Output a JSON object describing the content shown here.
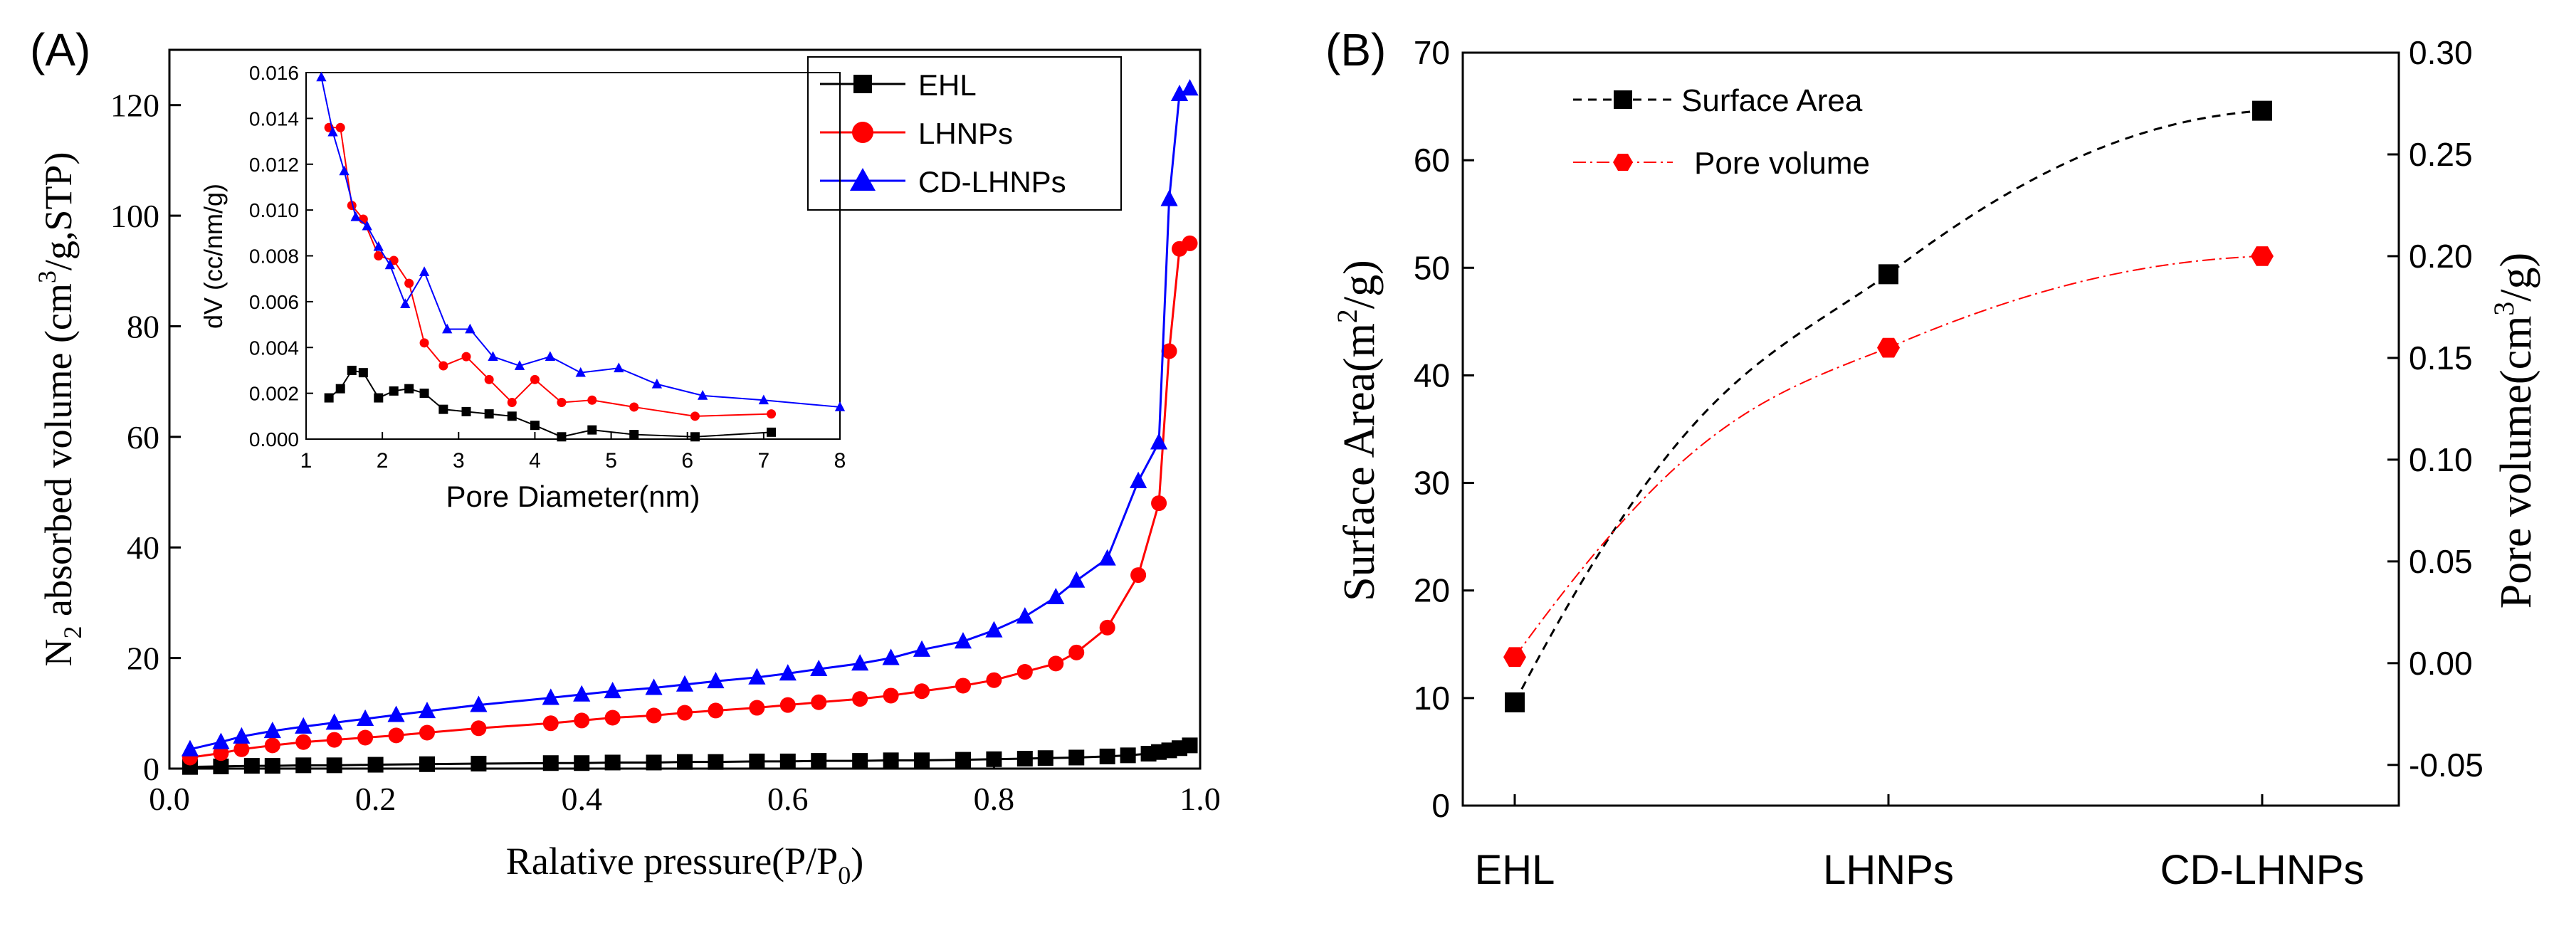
{
  "chart_data": [
    {
      "type": "line",
      "panel_label": "(A)",
      "xlabel": "Ralative pressure(P/P",
      "xlabel_sub": "0",
      "xlabel_tail": ")",
      "ylabel_prefix": "N",
      "ylabel_sub": "2",
      "ylabel_main": " absorbed volume (cm",
      "ylabel_sup": "3",
      "ylabel_tail": "/g,STP)",
      "xlim": [
        0,
        1.0
      ],
      "ylim": [
        0,
        130
      ],
      "xticks": [
        0.0,
        0.2,
        0.4,
        0.6,
        0.8,
        1.0
      ],
      "xtick_labels": [
        "0.0",
        "0.2",
        "0.4",
        "0.6",
        "0.8",
        "1.0"
      ],
      "yticks": [
        0,
        20,
        40,
        60,
        80,
        100,
        120
      ],
      "ytick_labels": [
        "0",
        "20",
        "40",
        "60",
        "80",
        "100",
        "120"
      ],
      "legend_position": "top-right",
      "series": [
        {
          "name": "EHL",
          "color": "#000000",
          "marker": "square",
          "x": [
            0.02,
            0.05,
            0.08,
            0.1,
            0.13,
            0.16,
            0.2,
            0.25,
            0.3,
            0.37,
            0.4,
            0.43,
            0.47,
            0.5,
            0.53,
            0.57,
            0.6,
            0.63,
            0.67,
            0.7,
            0.73,
            0.77,
            0.8,
            0.83,
            0.85,
            0.88,
            0.91,
            0.93,
            0.95,
            0.96,
            0.97,
            0.98,
            0.99
          ],
          "y": [
            0.3,
            0.4,
            0.5,
            0.5,
            0.6,
            0.6,
            0.7,
            0.8,
            0.9,
            1.0,
            1.0,
            1.1,
            1.1,
            1.2,
            1.2,
            1.3,
            1.3,
            1.4,
            1.4,
            1.5,
            1.5,
            1.6,
            1.7,
            1.8,
            1.9,
            2.0,
            2.2,
            2.4,
            2.7,
            3.0,
            3.3,
            3.7,
            4.2
          ]
        },
        {
          "name": "LHNPs",
          "color": "#ff0000",
          "marker": "circle",
          "x": [
            0.02,
            0.05,
            0.07,
            0.1,
            0.13,
            0.16,
            0.19,
            0.22,
            0.25,
            0.3,
            0.37,
            0.4,
            0.43,
            0.47,
            0.5,
            0.53,
            0.57,
            0.6,
            0.63,
            0.67,
            0.7,
            0.73,
            0.77,
            0.8,
            0.83,
            0.86,
            0.88,
            0.91,
            0.94,
            0.96,
            0.97,
            0.98,
            0.99
          ],
          "y": [
            2.0,
            2.8,
            3.5,
            4.2,
            4.8,
            5.2,
            5.6,
            6.0,
            6.5,
            7.3,
            8.2,
            8.7,
            9.2,
            9.6,
            10.1,
            10.5,
            11.0,
            11.5,
            12.0,
            12.6,
            13.2,
            14.0,
            15.0,
            16.0,
            17.5,
            19.0,
            21.0,
            25.5,
            35.0,
            48.0,
            75.5,
            94.0,
            95.0
          ]
        },
        {
          "name": "CD-LHNPs",
          "color": "#0000ff",
          "marker": "triangle",
          "x": [
            0.02,
            0.05,
            0.07,
            0.1,
            0.13,
            0.16,
            0.19,
            0.22,
            0.25,
            0.3,
            0.37,
            0.4,
            0.43,
            0.47,
            0.5,
            0.53,
            0.57,
            0.6,
            0.63,
            0.67,
            0.7,
            0.73,
            0.77,
            0.8,
            0.83,
            0.86,
            0.88,
            0.91,
            0.94,
            0.96,
            0.97,
            0.98,
            0.99
          ],
          "y": [
            3.5,
            4.8,
            5.8,
            6.8,
            7.6,
            8.3,
            9.0,
            9.7,
            10.4,
            11.5,
            12.8,
            13.4,
            14.0,
            14.6,
            15.2,
            15.8,
            16.5,
            17.2,
            18.0,
            19.0,
            20.0,
            21.5,
            23.0,
            25.0,
            27.5,
            31.0,
            34.0,
            38.0,
            52.0,
            59.0,
            103.0,
            122.0,
            123.0
          ]
        }
      ],
      "inset": {
        "type": "line",
        "xlabel": "Pore Diameter(nm)",
        "ylabel": "dV (cc/nm/g)",
        "xlim": [
          1,
          8
        ],
        "ylim": [
          0,
          0.016
        ],
        "xtick_labels": [
          "1",
          "2",
          "3",
          "4",
          "5",
          "6",
          "7",
          "8"
        ],
        "ytick_labels": [
          "0.000",
          "0.002",
          "0.004",
          "0.006",
          "0.008",
          "0.010",
          "0.012",
          "0.014",
          "0.016"
        ],
        "series": [
          {
            "name": "EHL",
            "color": "#000000",
            "marker": "square",
            "x": [
              1.3,
              1.45,
              1.6,
              1.75,
              1.95,
              2.15,
              2.35,
              2.55,
              2.8,
              3.1,
              3.4,
              3.7,
              4.0,
              4.35,
              4.75,
              5.3,
              6.1,
              7.1
            ],
            "y": [
              0.0018,
              0.0022,
              0.003,
              0.0029,
              0.0018,
              0.0021,
              0.0022,
              0.002,
              0.0013,
              0.0012,
              0.0011,
              0.001,
              0.0006,
              0.0001,
              0.0004,
              0.0002,
              0.0001,
              0.0003
            ]
          },
          {
            "name": "LHNPs",
            "color": "#ff0000",
            "marker": "circle",
            "x": [
              1.3,
              1.45,
              1.6,
              1.75,
              1.95,
              2.15,
              2.35,
              2.55,
              2.8,
              3.1,
              3.4,
              3.7,
              4.0,
              4.35,
              4.75,
              5.3,
              6.1,
              7.1
            ],
            "y": [
              0.0136,
              0.0136,
              0.0102,
              0.0096,
              0.008,
              0.0078,
              0.0068,
              0.0042,
              0.0032,
              0.0036,
              0.0026,
              0.0016,
              0.0026,
              0.0016,
              0.0017,
              0.0014,
              0.001,
              0.0011
            ]
          },
          {
            "name": "CD-LHNPs",
            "color": "#0000ff",
            "marker": "triangle",
            "x": [
              1.2,
              1.35,
              1.5,
              1.65,
              1.8,
              1.95,
              2.1,
              2.3,
              2.55,
              2.85,
              3.15,
              3.45,
              3.8,
              4.2,
              4.6,
              5.1,
              5.6,
              6.2,
              7.0,
              8.0
            ],
            "y": [
              0.0158,
              0.0134,
              0.0117,
              0.0097,
              0.0093,
              0.0084,
              0.0076,
              0.0059,
              0.0073,
              0.0048,
              0.0048,
              0.0036,
              0.0032,
              0.0036,
              0.0029,
              0.0031,
              0.0024,
              0.0019,
              0.0017,
              0.0014
            ]
          }
        ]
      }
    },
    {
      "type": "line",
      "panel_label": "(B)",
      "categories": [
        "EHL",
        "LHNPs",
        "CD-LHNPs"
      ],
      "ylabel": "Surface Area(m",
      "ylabel_sup": "2",
      "ylabel_tail": "/g)",
      "y2label": "Pore volume(cm",
      "y2label_sup": "3",
      "y2label_tail": "/g)",
      "ylim": [
        0,
        70
      ],
      "y2lim": [
        -0.07,
        0.3
      ],
      "yticks": [
        0,
        10,
        20,
        30,
        40,
        50,
        60,
        70
      ],
      "ytick_labels": [
        "0",
        "10",
        "20",
        "30",
        "40",
        "50",
        "60",
        "70"
      ],
      "y2ticks": [
        -0.05,
        0.0,
        0.05,
        0.1,
        0.15,
        0.2,
        0.25,
        0.3
      ],
      "y2tick_labels": [
        "-0.05",
        "0.00",
        "0.05",
        "0.10",
        "0.15",
        "0.20",
        "0.25",
        "0.30"
      ],
      "legend_position": "top-left",
      "series": [
        {
          "name": "Surface Area",
          "axis": "left",
          "color": "#000000",
          "marker": "square",
          "values": [
            9.6,
            49.4,
            64.6
          ]
        },
        {
          "name": "Pore volume",
          "axis": "right",
          "color": "#ff0000",
          "marker": "hexagon",
          "values": [
            0.003,
            0.155,
            0.2
          ]
        }
      ]
    }
  ]
}
